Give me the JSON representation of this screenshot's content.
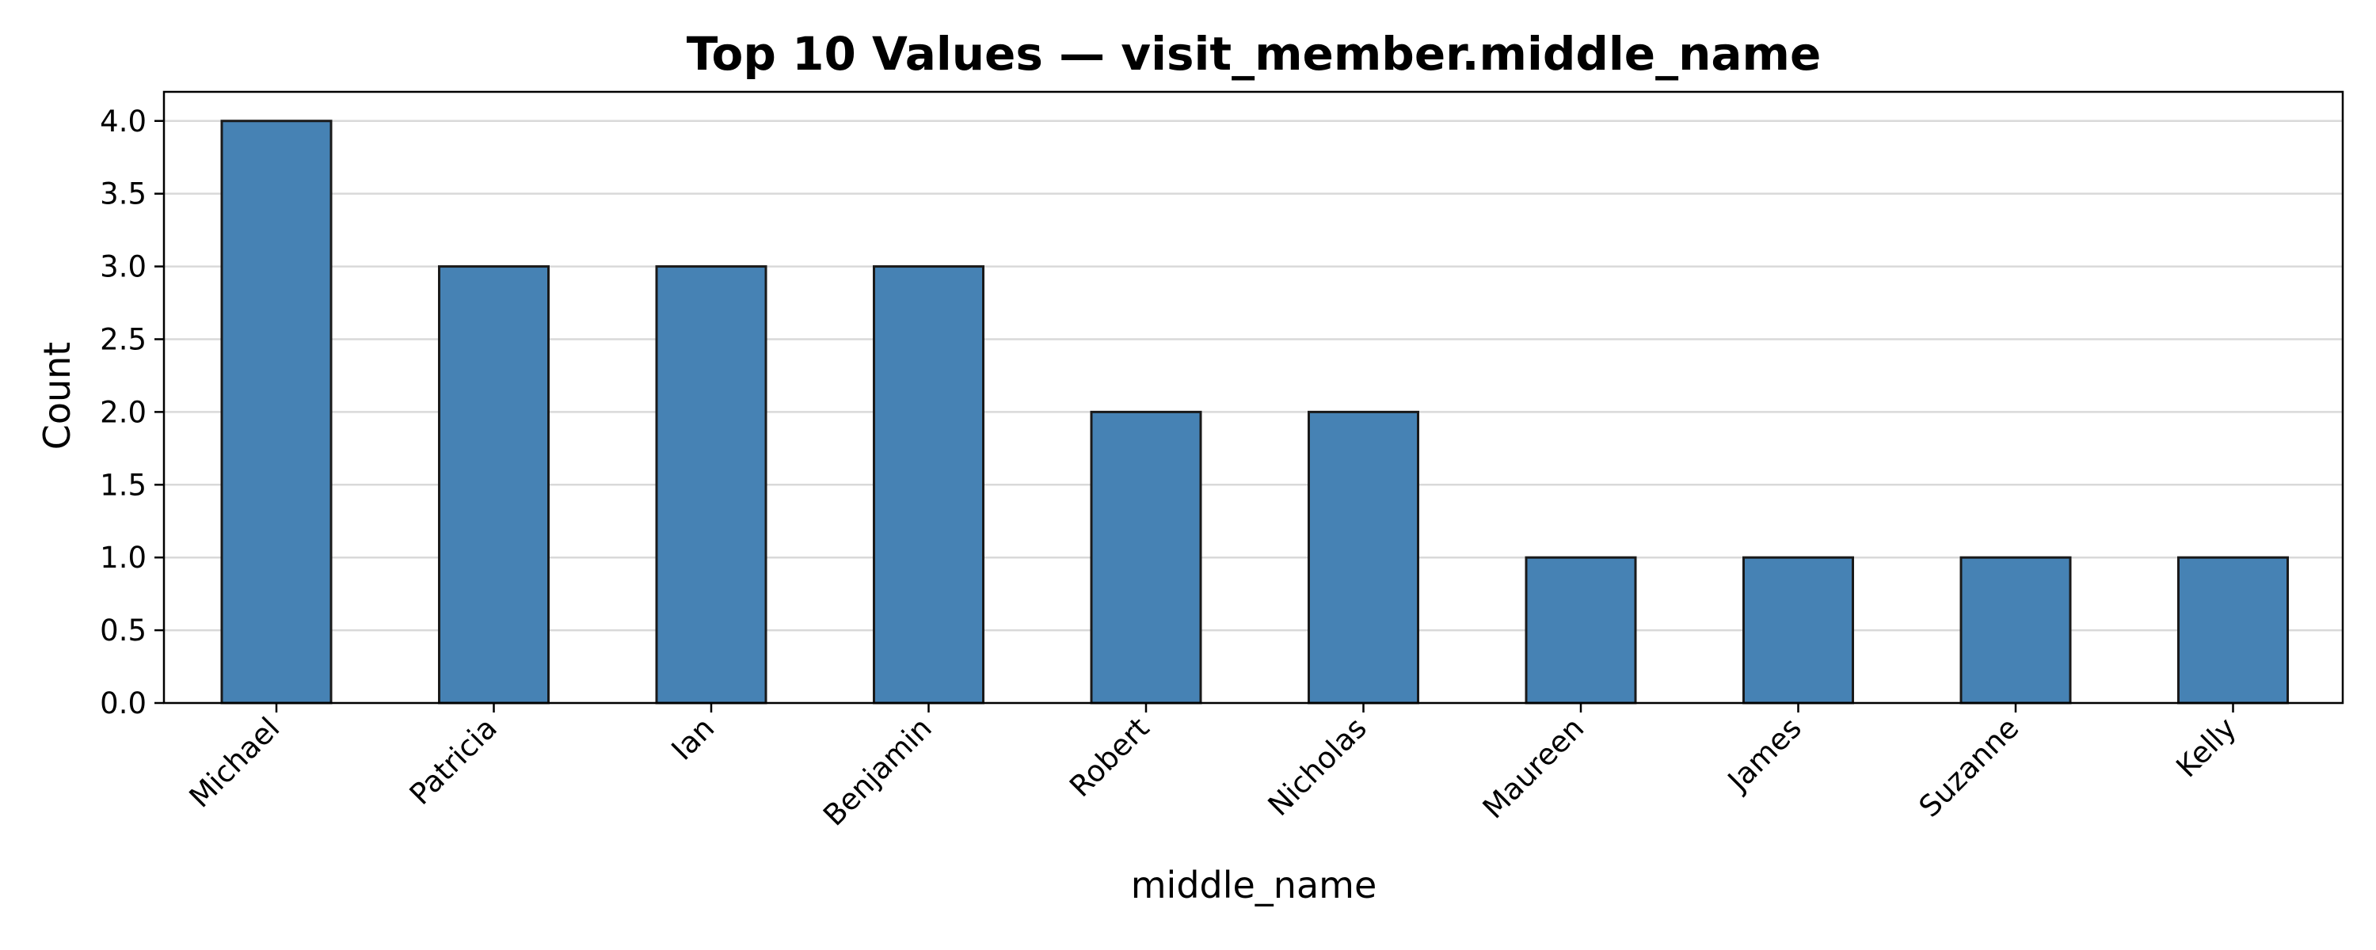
{
  "chart_data": {
    "type": "bar",
    "title": "Top 10 Values — visit_member.middle_name",
    "xlabel": "middle_name",
    "ylabel": "Count",
    "categories": [
      "Michael",
      "Patricia",
      "Ian",
      "Benjamin",
      "Robert",
      "Nicholas",
      "Maureen",
      "James",
      "Suzanne",
      "Kelly"
    ],
    "values": [
      4,
      3,
      3,
      3,
      2,
      2,
      1,
      1,
      1,
      1
    ],
    "ylim": [
      0,
      4.2
    ],
    "yticks": [
      "0.0",
      "0.5",
      "1.0",
      "1.5",
      "2.0",
      "2.5",
      "3.0",
      "3.5",
      "4.0"
    ],
    "grid": "y",
    "legend": "none",
    "colors": {
      "bar_fill": "#4682b4",
      "bar_edge": "#1a1a1a",
      "grid": "#d9d9d9",
      "axis": "#000000"
    }
  }
}
